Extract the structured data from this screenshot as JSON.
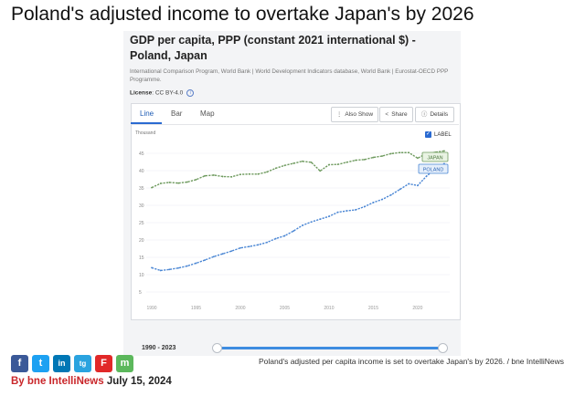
{
  "headline": "Poland's adjusted income to overtake Japan's by 2026",
  "card": {
    "title": "GDP per capita, PPP (constant 2021 international $) - Poland, Japan",
    "source": "International Comparison Program, World Bank | World Development Indicators database, World Bank | Eurostat-OECD PPP Programme.",
    "license_label": "License",
    "license_value": ": CC BY-4.0",
    "tabs": [
      "Line",
      "Bar",
      "Map"
    ],
    "buttons": {
      "also_show": "Also Show",
      "share": "Share",
      "details": "Details"
    },
    "label_toggle": "LABEL",
    "range": "1990 - 2023"
  },
  "social": [
    "f",
    "t",
    "in",
    "tg",
    "F",
    "m"
  ],
  "byline": {
    "by": "By bne IntelliNews",
    "date": "July 15, 2024"
  },
  "caption": "Poland's adjusted per capita income is set to overtake Japan's by 2026. / bne IntelliNews",
  "colors": {
    "poland": "#4a86d4",
    "japan": "#6e9a5e",
    "slider": "#3d8ce0",
    "red": "#c9262a"
  },
  "chart_data": {
    "type": "line",
    "ylabel": "Thousand",
    "x": [
      1990,
      1991,
      1992,
      1993,
      1994,
      1995,
      1996,
      1997,
      1998,
      1999,
      2000,
      2001,
      2002,
      2003,
      2004,
      2005,
      2006,
      2007,
      2008,
      2009,
      2010,
      2011,
      2012,
      2013,
      2014,
      2015,
      2016,
      2017,
      2018,
      2019,
      2020,
      2021,
      2022,
      2023
    ],
    "ylim": [
      0,
      50
    ],
    "yticks": [
      5,
      10,
      15,
      20,
      25,
      30,
      35,
      40,
      45
    ],
    "xticks": [
      1990,
      1995,
      2000,
      2005,
      2010,
      2015,
      2020
    ],
    "series": [
      {
        "name": "JAPAN",
        "values": [
          35.1,
          36.3,
          36.6,
          36.4,
          36.7,
          37.4,
          38.5,
          38.7,
          38.3,
          38.2,
          38.9,
          39.0,
          39.0,
          39.6,
          40.7,
          41.5,
          42.1,
          42.7,
          42.4,
          39.9,
          41.7,
          41.8,
          42.4,
          43.0,
          43.2,
          43.8,
          44.2,
          44.9,
          45.2,
          45.2,
          43.6,
          44.9,
          45.3,
          45.7
        ]
      },
      {
        "name": "POLAND",
        "values": [
          12.0,
          11.2,
          11.5,
          11.9,
          12.5,
          13.3,
          14.2,
          15.2,
          16.0,
          16.8,
          17.7,
          18.1,
          18.6,
          19.3,
          20.4,
          21.2,
          22.6,
          24.2,
          25.2,
          26.0,
          26.8,
          28.0,
          28.4,
          28.7,
          29.6,
          30.8,
          31.7,
          33.0,
          34.6,
          36.2,
          35.7,
          38.4,
          40.5,
          42.0
        ]
      }
    ]
  }
}
